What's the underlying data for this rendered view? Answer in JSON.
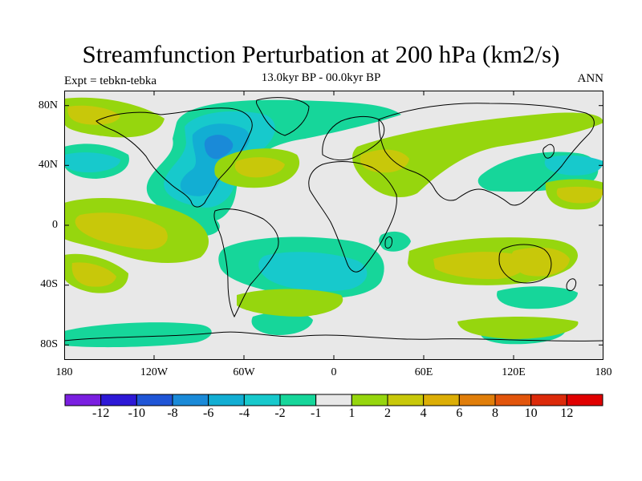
{
  "title": "Streamfunction Perturbation at 200 hPa (km2/s)",
  "subtitle": "13.0kyr BP - 00.0kyr BP",
  "left_label": "Expt = tebkn-tebka",
  "right_label": "ANN",
  "lat_ticks": [
    "80N",
    "40N",
    "0",
    "40S",
    "80S"
  ],
  "lon_ticks": [
    "180",
    "120W",
    "60W",
    "0",
    "60E",
    "120E",
    "180"
  ],
  "colorbar": {
    "labels": [
      "-12",
      "-10",
      "-8",
      "-6",
      "-4",
      "-2",
      "-1",
      "1",
      "2",
      "4",
      "6",
      "8",
      "10",
      "12"
    ],
    "colors": [
      "#7a1fe0",
      "#2d18d6",
      "#1f55d6",
      "#1a8ad8",
      "#12aed3",
      "#17c9cc",
      "#16d69a",
      "#e8e8e8",
      "#96d60e",
      "#c8c80a",
      "#dcae06",
      "#e07e0a",
      "#e2550c",
      "#dc2a0a",
      "#e00000"
    ]
  },
  "palette": {
    "background": "#e8e8e8",
    "neg1": "#16d69a",
    "neg2": "#17c9cc",
    "neg3": "#12aed3",
    "neg4": "#1a8ad8",
    "pos1": "#96d60e",
    "pos2": "#c8c80a"
  }
}
